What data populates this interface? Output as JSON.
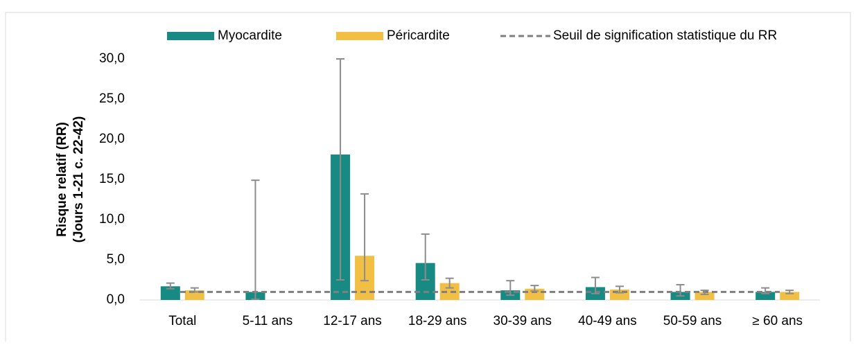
{
  "chart_data": {
    "type": "bar",
    "y_axis_title": [
      "Risque relatif (RR)",
      "(Jours  1-21 c. 22-42)"
    ],
    "categories": [
      "Total",
      "5-11 ans",
      "12-17 ans",
      "18-29 ans",
      "30-39 ans",
      "40-49 ans",
      "50-59 ans",
      "≥ 60 ans"
    ],
    "series": [
      {
        "name": "Myocardite",
        "color": "#178a84",
        "values": [
          1.7,
          1.0,
          18.1,
          4.6,
          1.2,
          1.6,
          1.0,
          1.0
        ],
        "ci_low": [
          1.4,
          0.1,
          2.5,
          2.5,
          0.6,
          0.8,
          0.5,
          0.8
        ],
        "ci_high": [
          2.1,
          14.9,
          30.0,
          8.2,
          2.4,
          2.8,
          1.9,
          1.5
        ]
      },
      {
        "name": "Péricardite",
        "color": "#f2bf45",
        "values": [
          1.2,
          null,
          5.5,
          2.1,
          1.4,
          1.3,
          1.0,
          1.0
        ],
        "ci_low": [
          1.0,
          null,
          2.4,
          1.5,
          1.1,
          0.9,
          0.7,
          0.8
        ],
        "ci_high": [
          1.5,
          null,
          13.2,
          2.7,
          1.8,
          1.7,
          1.2,
          1.2
        ]
      }
    ],
    "reference_line": {
      "name": "Seuil de signification statistique du RR",
      "value": 1,
      "color": "#7f7f7f"
    },
    "ylim": [
      0,
      30
    ],
    "yticks": [
      {
        "value": 0,
        "label": "0,0"
      },
      {
        "value": 5,
        "label": "5,0"
      },
      {
        "value": 10,
        "label": "10,0"
      },
      {
        "value": 15,
        "label": "15,0"
      },
      {
        "value": 20,
        "label": "20,0"
      },
      {
        "value": 25,
        "label": "25,0"
      },
      {
        "value": 30,
        "label": "30,0"
      }
    ],
    "error_bar_color": "#8c8c8c"
  }
}
